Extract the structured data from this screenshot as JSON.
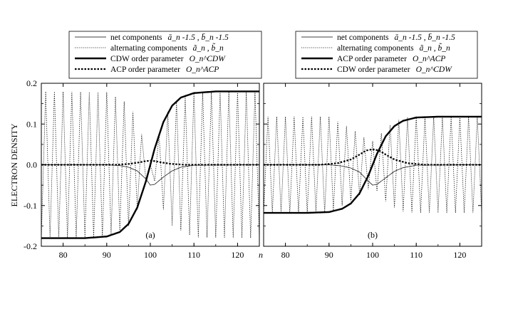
{
  "chart_data": [
    {
      "type": "line",
      "panel_label": "(a)",
      "xlabel": "n",
      "ylabel": "ELECTRON DENSITY",
      "xlim": [
        75,
        125
      ],
      "ylim": [
        -0.2,
        0.2
      ],
      "x_ticks": [
        80,
        90,
        100,
        110,
        120
      ],
      "y_ticks": [
        -0.2,
        -0.1,
        0.0,
        0.1,
        0.2
      ],
      "y_tick_labels": [
        "-0.2",
        "-0.1",
        "0.0",
        "0.1",
        "0.2"
      ],
      "legend_position": "top",
      "series": [
        {
          "name": "net components",
          "name_math": "ā_n -1.5 , b̄_n -1.5",
          "style": "solid-thin",
          "x": [
            75,
            90,
            93,
            95,
            97,
            99,
            100,
            101,
            103,
            105,
            107,
            110,
            125
          ],
          "y": [
            0,
            0,
            -0.002,
            -0.006,
            -0.015,
            -0.035,
            -0.05,
            -0.048,
            -0.03,
            -0.015,
            -0.006,
            -0.001,
            0
          ]
        },
        {
          "name": "alternating components",
          "name_math": "ã_n , b̃_n",
          "style": "dotted",
          "amplitude_x": [
            75,
            90,
            95,
            97,
            99,
            100,
            101,
            103,
            105,
            110,
            125
          ],
          "amplitude_y": [
            0.18,
            0.178,
            0.15,
            0.11,
            0.04,
            0.0,
            0.04,
            0.11,
            0.15,
            0.178,
            0.18
          ]
        },
        {
          "name": "CDW order parameter",
          "name_math": "O_n^CDW",
          "style": "solid-thick",
          "x": [
            75,
            85,
            90,
            93,
            95,
            97,
            99,
            100,
            101,
            103,
            105,
            107,
            110,
            115,
            125
          ],
          "y": [
            -0.18,
            -0.18,
            -0.176,
            -0.165,
            -0.145,
            -0.105,
            -0.04,
            0.0,
            0.04,
            0.105,
            0.145,
            0.165,
            0.176,
            0.18,
            0.18
          ]
        },
        {
          "name": "ACP order parameter",
          "name_math": "O_n^ACP",
          "style": "dashed-thick",
          "x": [
            75,
            92,
            95,
            97,
            99,
            100,
            101,
            103,
            105,
            108,
            125
          ],
          "y": [
            0,
            0,
            0.002,
            0.005,
            0.009,
            0.01,
            0.009,
            0.005,
            0.002,
            0,
            0
          ]
        }
      ]
    },
    {
      "type": "line",
      "panel_label": "(b)",
      "xlabel": "",
      "ylabel": "",
      "xlim": [
        75,
        125
      ],
      "ylim": [
        -0.2,
        0.2
      ],
      "x_ticks": [
        80,
        90,
        100,
        110,
        120
      ],
      "y_ticks": [
        -0.2,
        -0.1,
        0.0,
        0.1,
        0.2
      ],
      "legend_position": "top",
      "series": [
        {
          "name": "net components",
          "name_math": "ā_n -1.5 , b̄_n -1.5",
          "style": "solid-thin",
          "x": [
            75,
            90,
            93,
            95,
            97,
            99,
            100,
            101,
            103,
            105,
            107,
            110,
            125
          ],
          "y": [
            0,
            0,
            -0.003,
            -0.008,
            -0.018,
            -0.04,
            -0.05,
            -0.048,
            -0.032,
            -0.016,
            -0.007,
            -0.001,
            0
          ]
        },
        {
          "name": "alternating components",
          "name_math": "ã_n , b̃_n",
          "style": "dotted",
          "amplitude_x": [
            75,
            90,
            93,
            95,
            97,
            99,
            100,
            101,
            103,
            105,
            107,
            110,
            125
          ],
          "amplitude_y": [
            0.118,
            0.118,
            0.1,
            0.09,
            0.075,
            0.06,
            0.058,
            0.065,
            0.09,
            0.105,
            0.115,
            0.118,
            0.118
          ]
        },
        {
          "name": "ACP order parameter",
          "name_math": "O_n^ACP",
          "style": "solid-thick",
          "x": [
            75,
            85,
            90,
            93,
            95,
            97,
            99,
            100,
            101,
            103,
            105,
            107,
            110,
            115,
            125
          ],
          "y": [
            -0.118,
            -0.118,
            -0.116,
            -0.108,
            -0.095,
            -0.07,
            -0.027,
            0.0,
            0.027,
            0.07,
            0.095,
            0.108,
            0.116,
            0.118,
            0.118
          ]
        },
        {
          "name": "CDW order parameter",
          "name_math": "O_n^CDW",
          "style": "dashed-thick",
          "x": [
            75,
            88,
            92,
            95,
            97,
            98.5,
            100,
            101.5,
            103,
            105,
            108,
            112,
            125
          ],
          "y": [
            0,
            0,
            0.004,
            0.013,
            0.025,
            0.035,
            0.038,
            0.035,
            0.025,
            0.013,
            0.004,
            0,
            0
          ]
        }
      ]
    }
  ]
}
